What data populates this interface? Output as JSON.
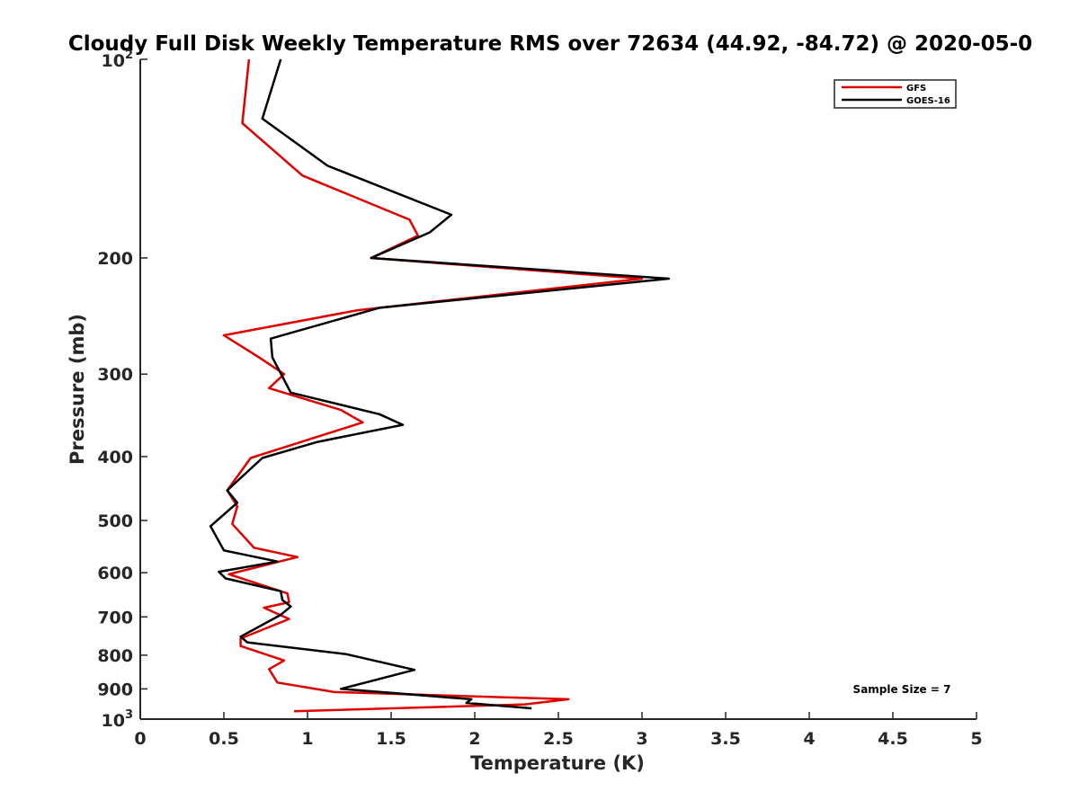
{
  "chart_data": {
    "type": "line",
    "title": "Cloudy Full Disk Weekly Temperature RMS over 72634 (44.92, -84.72) @ 2020-05-0",
    "xlabel": "Temperature (K)",
    "ylabel": "Pressure (mb)",
    "xlim": [
      0,
      5
    ],
    "ylim": [
      100,
      1000
    ],
    "y_scale": "log",
    "y_reversed": true,
    "x_ticks": [
      "0",
      "0.5",
      "1",
      "1.5",
      "2",
      "2.5",
      "3",
      "3.5",
      "4",
      "4.5",
      "5"
    ],
    "y_ticks": [
      {
        "value": 100,
        "base": "10",
        "exp": "2"
      },
      {
        "value": 200,
        "label": "200"
      },
      {
        "value": 300,
        "label": "300"
      },
      {
        "value": 400,
        "label": "400"
      },
      {
        "value": 500,
        "label": "500"
      },
      {
        "value": 600,
        "label": "600"
      },
      {
        "value": 700,
        "label": "700"
      },
      {
        "value": 800,
        "label": "800"
      },
      {
        "value": 900,
        "label": "900"
      },
      {
        "value": 1000,
        "base": "10",
        "exp": "3"
      }
    ],
    "grid": false,
    "legend_position": "top-right",
    "annotation": "Sample Size = 7",
    "series": [
      {
        "name": "GFS",
        "color": "#e00000",
        "points": [
          [
            0.65,
            100
          ],
          [
            0.61,
            125
          ],
          [
            0.97,
            150
          ],
          [
            1.61,
            175
          ],
          [
            1.66,
            185
          ],
          [
            1.38,
            200
          ],
          [
            3.0,
            215
          ],
          [
            1.3,
            240
          ],
          [
            0.5,
            262
          ],
          [
            0.71,
            283
          ],
          [
            0.86,
            300
          ],
          [
            0.77,
            315
          ],
          [
            1.2,
            340
          ],
          [
            1.33,
            355
          ],
          [
            0.66,
            402
          ],
          [
            0.52,
            450
          ],
          [
            0.58,
            476
          ],
          [
            0.55,
            506
          ],
          [
            0.68,
            550
          ],
          [
            0.94,
            568
          ],
          [
            0.53,
            603
          ],
          [
            0.88,
            645
          ],
          [
            0.89,
            665
          ],
          [
            0.74,
            678
          ],
          [
            0.89,
            705
          ],
          [
            0.6,
            755
          ],
          [
            0.6,
            775
          ],
          [
            0.86,
            815
          ],
          [
            0.77,
            840
          ],
          [
            0.82,
            880
          ],
          [
            1.16,
            910
          ],
          [
            2.56,
            933
          ],
          [
            2.3,
            950
          ],
          [
            0.92,
            973
          ]
        ]
      },
      {
        "name": "GOES-16",
        "color": "#000000",
        "points": [
          [
            0.84,
            100
          ],
          [
            0.73,
            123
          ],
          [
            1.12,
            145
          ],
          [
            1.86,
            172
          ],
          [
            1.73,
            183
          ],
          [
            1.38,
            200
          ],
          [
            3.16,
            215
          ],
          [
            1.43,
            238
          ],
          [
            0.78,
            265
          ],
          [
            0.79,
            283
          ],
          [
            0.9,
            320
          ],
          [
            1.43,
            345
          ],
          [
            1.57,
            358
          ],
          [
            1.06,
            380
          ],
          [
            0.73,
            402
          ],
          [
            0.52,
            450
          ],
          [
            0.58,
            470
          ],
          [
            0.42,
            510
          ],
          [
            0.5,
            555
          ],
          [
            0.82,
            577
          ],
          [
            0.47,
            598
          ],
          [
            0.51,
            612
          ],
          [
            0.84,
            640
          ],
          [
            0.85,
            660
          ],
          [
            0.9,
            675
          ],
          [
            0.84,
            695
          ],
          [
            0.6,
            750
          ],
          [
            0.64,
            765
          ],
          [
            1.23,
            797
          ],
          [
            1.64,
            842
          ],
          [
            1.2,
            900
          ],
          [
            1.98,
            933
          ],
          [
            1.95,
            945
          ],
          [
            2.34,
            963
          ]
        ]
      }
    ]
  }
}
